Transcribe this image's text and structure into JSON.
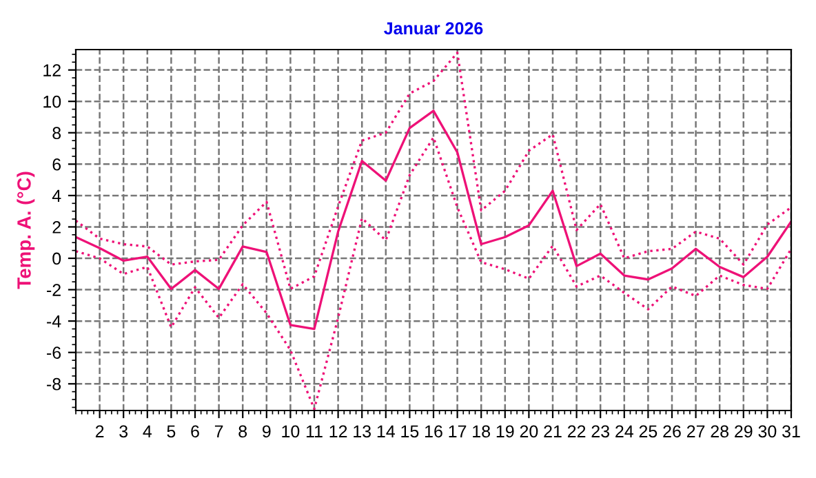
{
  "chart_data": {
    "type": "line",
    "title": "Januar 2026",
    "ylabel": "Temp. A. (°C)",
    "x": [
      1,
      2,
      3,
      4,
      5,
      6,
      7,
      8,
      9,
      10,
      11,
      12,
      13,
      14,
      15,
      16,
      17,
      18,
      19,
      20,
      21,
      22,
      23,
      24,
      25,
      26,
      27,
      28,
      29,
      30,
      31
    ],
    "series": [
      {
        "color": "#ee1177",
        "line_style": "solid",
        "values": [
          1.35,
          0.65,
          -0.15,
          0.1,
          -1.95,
          -0.75,
          -1.95,
          0.75,
          0.4,
          -4.25,
          -4.5,
          1.7,
          6.2,
          4.95,
          8.3,
          9.4,
          6.75,
          0.9,
          1.35,
          2.1,
          4.3,
          -0.5,
          0.3,
          -1.1,
          -1.35,
          -0.65,
          0.6,
          -0.55,
          -1.2,
          0.1,
          2.35
        ]
      },
      {
        "color": "#ee1177",
        "line_style": "dotted",
        "values": [
          2.4,
          1.25,
          0.9,
          0.75,
          -0.4,
          -0.2,
          -0.1,
          2.1,
          3.6,
          -1.95,
          -1.15,
          3.3,
          7.5,
          8.0,
          10.5,
          11.3,
          13.1,
          3.05,
          4.3,
          6.85,
          7.9,
          1.8,
          3.45,
          0.0,
          0.45,
          0.6,
          1.7,
          1.25,
          -0.4,
          2.15,
          3.25
        ]
      },
      {
        "color": "#ee1177",
        "line_style": "dotted",
        "values": [
          0.45,
          0.0,
          -1.0,
          -0.55,
          -4.4,
          -1.85,
          -3.8,
          -1.65,
          -3.5,
          -5.85,
          -9.6,
          -3.8,
          2.55,
          1.15,
          5.3,
          7.7,
          3.25,
          -0.25,
          -0.7,
          -1.3,
          0.8,
          -1.8,
          -1.1,
          -2.2,
          -3.25,
          -1.8,
          -2.4,
          -1.1,
          -1.7,
          -1.95,
          0.6
        ]
      }
    ],
    "xlim": [
      1,
      31
    ],
    "xticks": [
      2,
      3,
      4,
      5,
      6,
      7,
      8,
      9,
      10,
      11,
      12,
      13,
      14,
      15,
      16,
      17,
      18,
      19,
      20,
      21,
      22,
      23,
      24,
      25,
      26,
      27,
      28,
      29,
      30,
      31
    ],
    "ylim": [
      -9.7,
      13.3
    ],
    "yticks": [
      -8,
      -6,
      -4,
      -2,
      0,
      2,
      4,
      6,
      8,
      10,
      12
    ],
    "grid": true
  }
}
